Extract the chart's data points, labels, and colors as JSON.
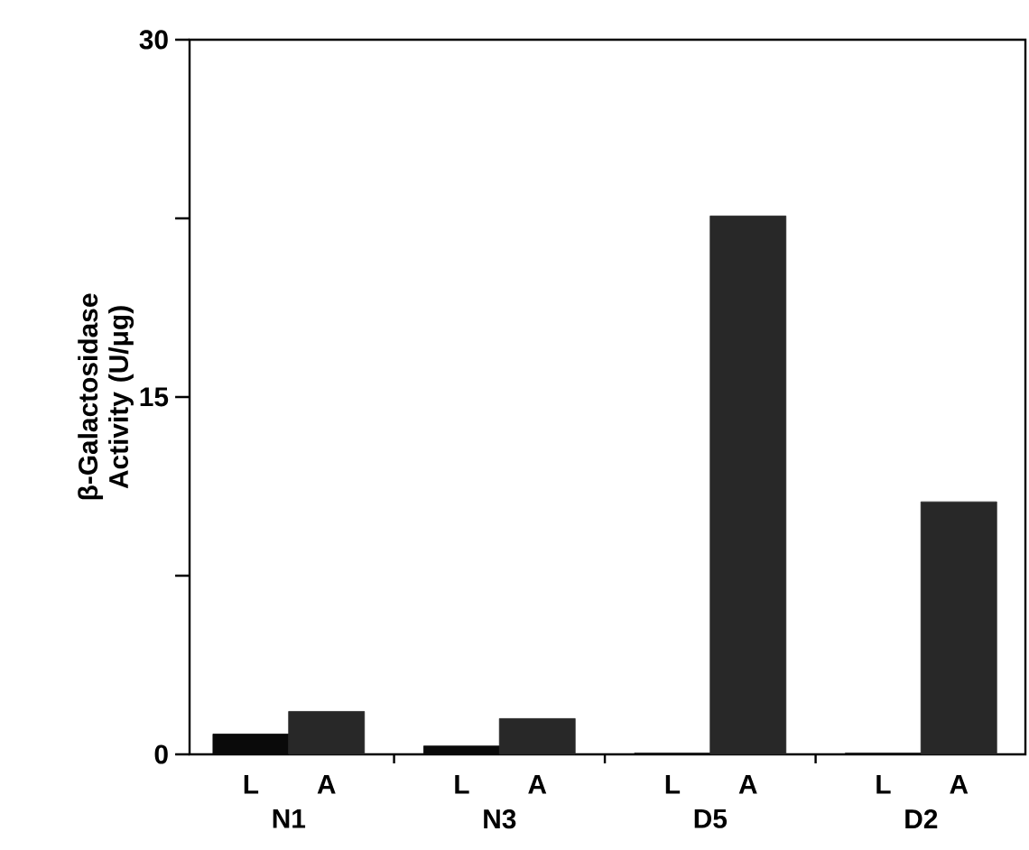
{
  "chart_data": {
    "type": "bar",
    "ylabel": "β-Galactosidase Activity (U/μg)",
    "categories": [
      "L",
      "A",
      "L",
      "A",
      "L",
      "A",
      "L",
      "A"
    ],
    "values": [
      0.85,
      1.8,
      0.35,
      1.5,
      0.05,
      22.6,
      0.05,
      10.6
    ],
    "colors": [
      "#0a0a0a",
      "#282828",
      "#0a0a0a",
      "#282828",
      "#0a0a0a",
      "#282828",
      "#0a0a0a",
      "#282828"
    ],
    "annotations": [
      "N1",
      "N3",
      "D5",
      "D2"
    ],
    "ylim": [
      0,
      30
    ],
    "yticks": [
      0,
      {
        "value": 7.5,
        "label": null
      },
      15,
      {
        "value": 22.5,
        "label": null
      },
      30
    ],
    "grid": false
  }
}
